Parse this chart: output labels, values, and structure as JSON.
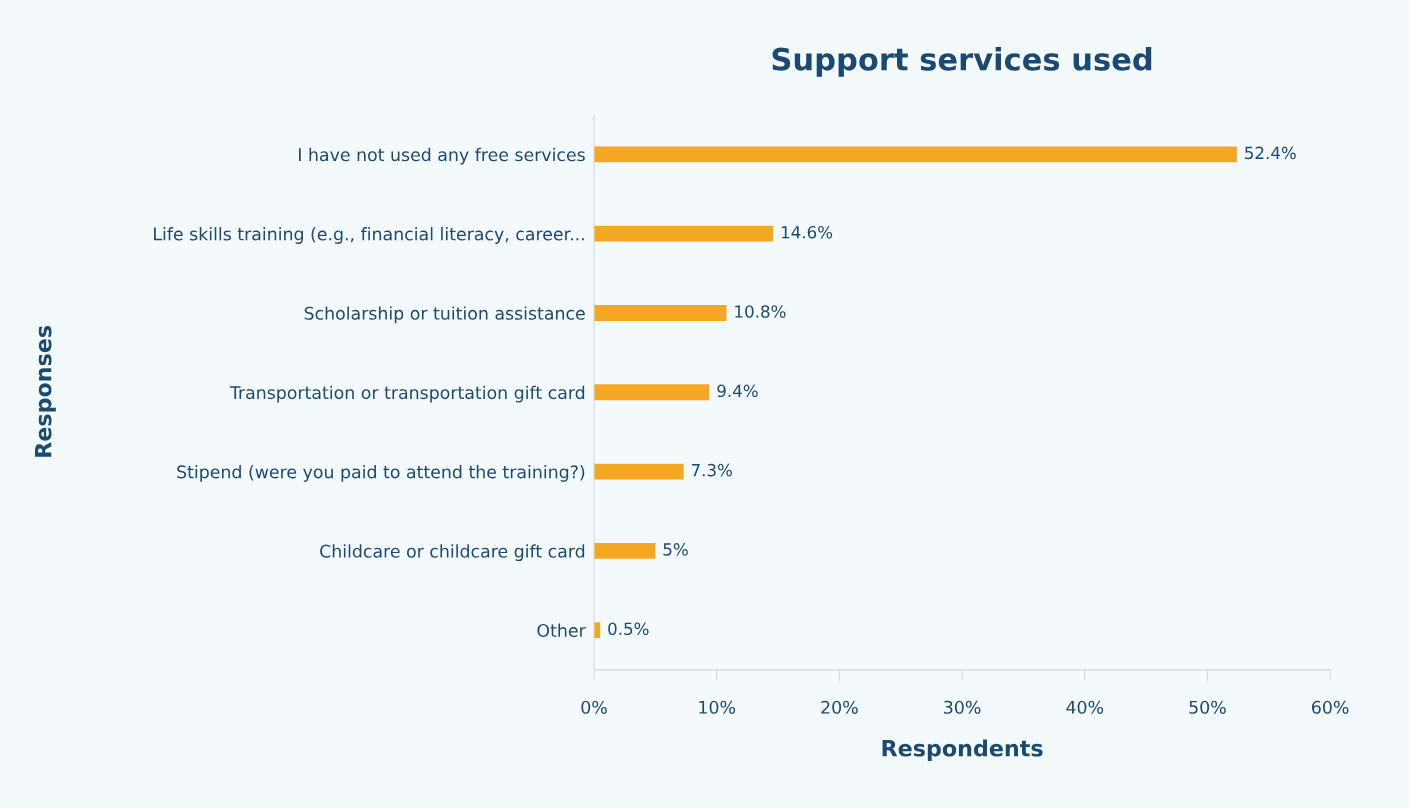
{
  "chart_data": {
    "type": "bar",
    "orientation": "horizontal",
    "title": "Support services used",
    "xlabel": "Respondents",
    "ylabel": "Responses",
    "categories": [
      "I have not used any free services",
      "Life skills training (e.g., financial literacy, career...",
      "Scholarship or tuition assistance",
      "Transportation or transportation gift card",
      "Stipend (were you paid to attend the training?)",
      "Childcare or childcare gift card",
      "Other"
    ],
    "values": [
      52.4,
      14.6,
      10.8,
      9.4,
      7.3,
      5,
      0.5
    ],
    "value_labels": [
      "52.4%",
      "14.6%",
      "10.8%",
      "9.4%",
      "7.3%",
      "5%",
      "0.5%"
    ],
    "color": "#f5a623",
    "xlim": [
      0,
      60
    ],
    "xticks": [
      {
        "value": 0,
        "label": "0%"
      },
      {
        "value": 10,
        "label": "10%"
      },
      {
        "value": 20,
        "label": "20%"
      },
      {
        "value": 30,
        "label": "30%"
      },
      {
        "value": 40,
        "label": "40%"
      },
      {
        "value": 50,
        "label": "50%"
      },
      {
        "value": 60,
        "label": "60%"
      }
    ],
    "grid": false,
    "legend": false
  }
}
